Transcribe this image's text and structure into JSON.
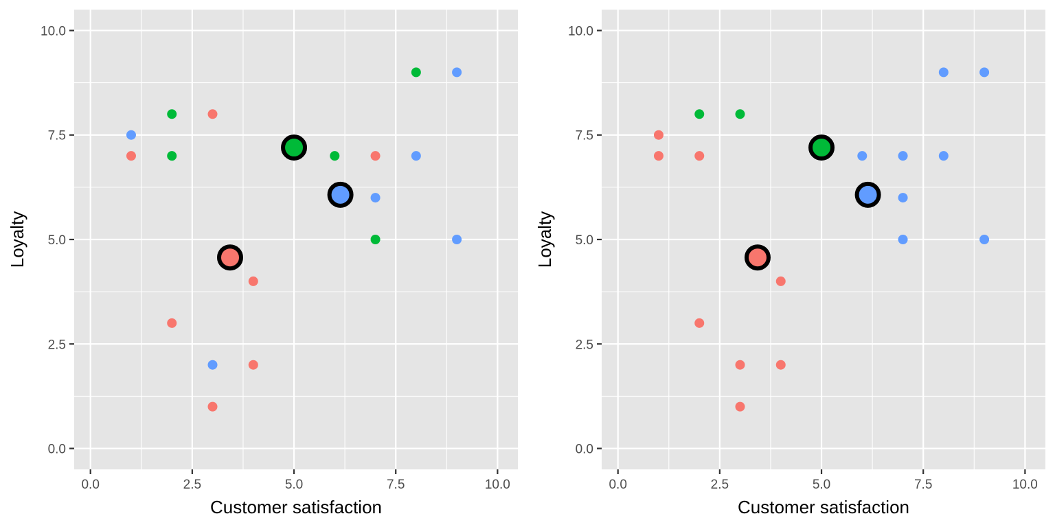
{
  "colors": {
    "cluster1": "#f8766d",
    "cluster2": "#00ba38",
    "cluster3": "#619cff",
    "panel": "#e5e5e5",
    "centroid_outline": "#000000"
  },
  "chart_data": [
    {
      "type": "scatter",
      "title": "",
      "xlabel": "Customer satisfaction",
      "ylabel": "Loyalty",
      "xlim": [
        -0.4,
        10.5
      ],
      "ylim": [
        -0.5,
        10.5
      ],
      "x_ticks": [
        0,
        2.5,
        5,
        7.5,
        10
      ],
      "y_ticks": [
        0,
        2.5,
        5,
        7.5,
        10
      ],
      "x_tick_labels": [
        "0.0",
        "2.5",
        "5.0",
        "7.5",
        "10.0"
      ],
      "y_tick_labels": [
        "0.0",
        "2.5",
        "5.0",
        "7.5",
        "10.0"
      ],
      "grid": true,
      "legend": "none",
      "points": [
        {
          "x": 1,
          "y": 7.5,
          "cluster": 3
        },
        {
          "x": 1,
          "y": 7,
          "cluster": 1
        },
        {
          "x": 2,
          "y": 8,
          "cluster": 2
        },
        {
          "x": 2,
          "y": 7,
          "cluster": 2
        },
        {
          "x": 2,
          "y": 3,
          "cluster": 1
        },
        {
          "x": 3,
          "y": 8,
          "cluster": 1
        },
        {
          "x": 3,
          "y": 2,
          "cluster": 3
        },
        {
          "x": 3,
          "y": 1,
          "cluster": 1
        },
        {
          "x": 4,
          "y": 4,
          "cluster": 1
        },
        {
          "x": 4,
          "y": 2,
          "cluster": 1
        },
        {
          "x": 6,
          "y": 7,
          "cluster": 2
        },
        {
          "x": 7,
          "y": 7,
          "cluster": 1
        },
        {
          "x": 7,
          "y": 6,
          "cluster": 3
        },
        {
          "x": 7,
          "y": 5,
          "cluster": 2
        },
        {
          "x": 8,
          "y": 9,
          "cluster": 2
        },
        {
          "x": 8,
          "y": 7,
          "cluster": 3
        },
        {
          "x": 9,
          "y": 9,
          "cluster": 3
        },
        {
          "x": 9,
          "y": 5,
          "cluster": 3
        }
      ],
      "centroids": [
        {
          "x": 3.43,
          "y": 4.57,
          "cluster": 1
        },
        {
          "x": 5.0,
          "y": 7.2,
          "cluster": 2
        },
        {
          "x": 6.14,
          "y": 6.07,
          "cluster": 3
        }
      ]
    },
    {
      "type": "scatter",
      "title": "",
      "xlabel": "Customer satisfaction",
      "ylabel": "Loyalty",
      "xlim": [
        -0.4,
        10.5
      ],
      "ylim": [
        -0.5,
        10.5
      ],
      "x_ticks": [
        0,
        2.5,
        5,
        7.5,
        10
      ],
      "y_ticks": [
        0,
        2.5,
        5,
        7.5,
        10
      ],
      "x_tick_labels": [
        "0.0",
        "2.5",
        "5.0",
        "7.5",
        "10.0"
      ],
      "y_tick_labels": [
        "0.0",
        "2.5",
        "5.0",
        "7.5",
        "10.0"
      ],
      "grid": true,
      "legend": "none",
      "points": [
        {
          "x": 1,
          "y": 7.5,
          "cluster": 1
        },
        {
          "x": 1,
          "y": 7,
          "cluster": 1
        },
        {
          "x": 2,
          "y": 8,
          "cluster": 2
        },
        {
          "x": 2,
          "y": 7,
          "cluster": 1
        },
        {
          "x": 2,
          "y": 3,
          "cluster": 1
        },
        {
          "x": 3,
          "y": 8,
          "cluster": 2
        },
        {
          "x": 3,
          "y": 2,
          "cluster": 1
        },
        {
          "x": 3,
          "y": 1,
          "cluster": 1
        },
        {
          "x": 4,
          "y": 4,
          "cluster": 1
        },
        {
          "x": 4,
          "y": 2,
          "cluster": 1
        },
        {
          "x": 6,
          "y": 7,
          "cluster": 3
        },
        {
          "x": 7,
          "y": 7,
          "cluster": 3
        },
        {
          "x": 7,
          "y": 6,
          "cluster": 3
        },
        {
          "x": 7,
          "y": 5,
          "cluster": 3
        },
        {
          "x": 8,
          "y": 9,
          "cluster": 3
        },
        {
          "x": 8,
          "y": 7,
          "cluster": 3
        },
        {
          "x": 9,
          "y": 9,
          "cluster": 3
        },
        {
          "x": 9,
          "y": 5,
          "cluster": 3
        }
      ],
      "centroids": [
        {
          "x": 3.43,
          "y": 4.57,
          "cluster": 1
        },
        {
          "x": 5.0,
          "y": 7.2,
          "cluster": 2
        },
        {
          "x": 6.14,
          "y": 6.07,
          "cluster": 3
        }
      ]
    }
  ]
}
